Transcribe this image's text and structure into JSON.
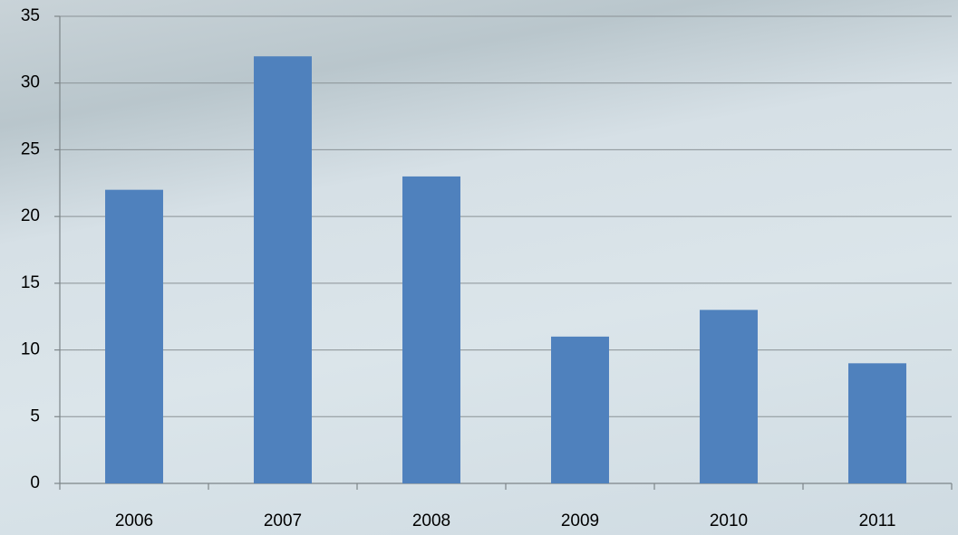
{
  "chart_data": {
    "type": "bar",
    "categories": [
      "2006",
      "2007",
      "2008",
      "2009",
      "2010",
      "2011"
    ],
    "values": [
      22,
      32,
      23,
      11,
      13,
      9
    ],
    "color": "#4f81bd",
    "ylim": [
      0,
      35
    ],
    "yticks": [
      0,
      5,
      10,
      15,
      20,
      25,
      30,
      35
    ],
    "grid": true
  }
}
